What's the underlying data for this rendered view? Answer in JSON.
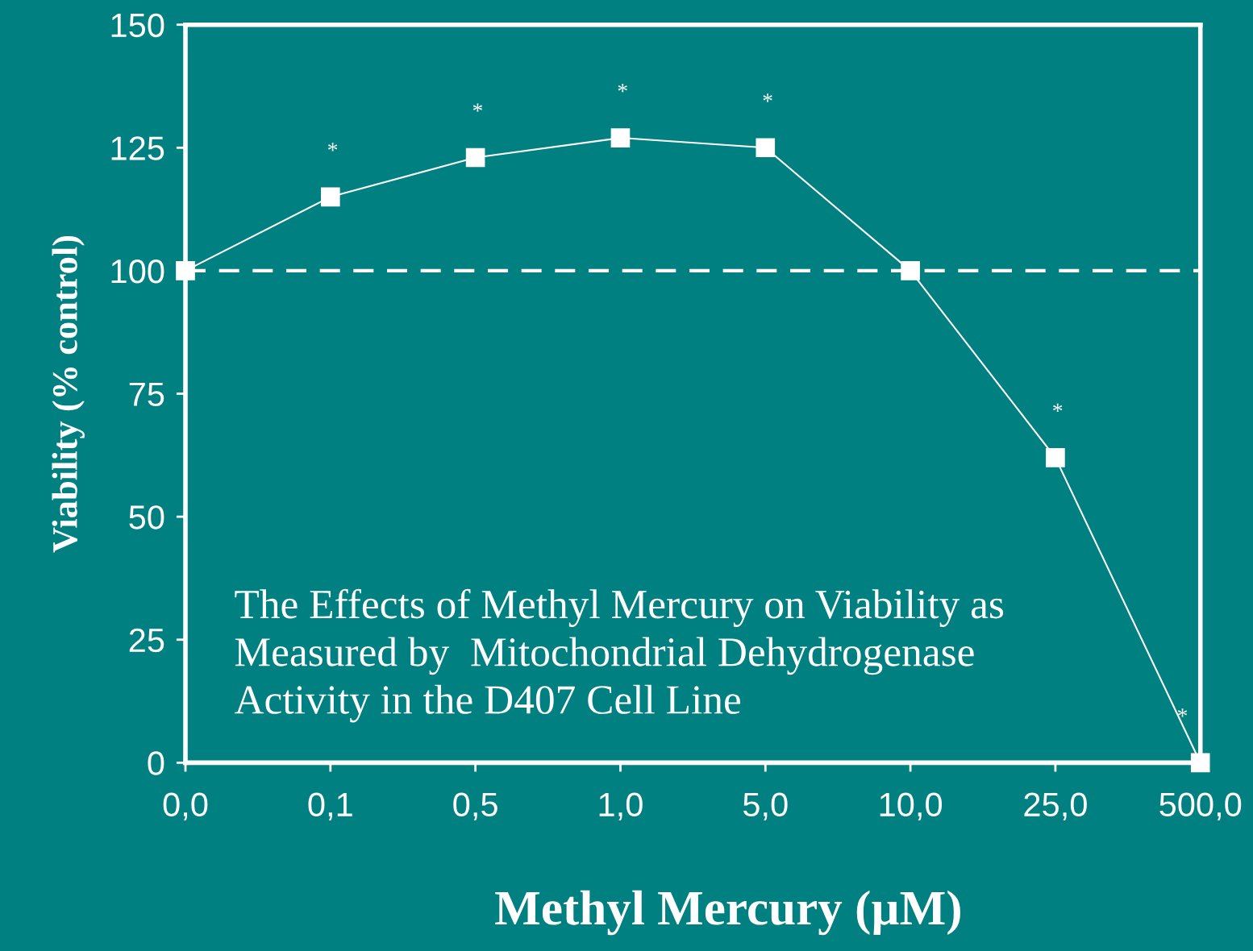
{
  "chart_data": {
    "type": "line",
    "categories": [
      "0,0",
      "0,1",
      "0,5",
      "1,0",
      "5,0",
      "10,0",
      "25,0",
      "500,0"
    ],
    "series": [
      {
        "color": "#ffffff",
        "values": [
          100,
          115,
          123,
          127,
          125,
          100,
          62,
          0
        ]
      }
    ],
    "marker": "square",
    "line_style": "solid",
    "xlabel": "Methyl Mercury (µM)",
    "ylabel": "Viability (% control)",
    "ylim": [
      0,
      150
    ],
    "yticks": [
      0,
      25,
      50,
      75,
      100,
      125,
      150
    ],
    "grid": false,
    "legend": false,
    "ref_lines": [
      {
        "axis": "y",
        "value": 100,
        "color": "#ffffff",
        "line_style": "dashed"
      }
    ],
    "annotations": [
      "The Effects of Methyl Mercury on Viability as\nMeasured by  Mitochondrial Dehydrogenase\nActivity in the D407 Cell Line",
      {
        "text": "*",
        "x": "0,1",
        "y": 115
      },
      {
        "text": "*",
        "x": "0,5",
        "y": 123
      },
      {
        "text": "*",
        "x": "1,0",
        "y": 127
      },
      {
        "text": "*",
        "x": "5,0",
        "y": 125
      },
      {
        "text": "*",
        "x": "25,0",
        "y": 62
      },
      {
        "text": "*",
        "x": "500,0",
        "y": 0
      }
    ]
  }
}
